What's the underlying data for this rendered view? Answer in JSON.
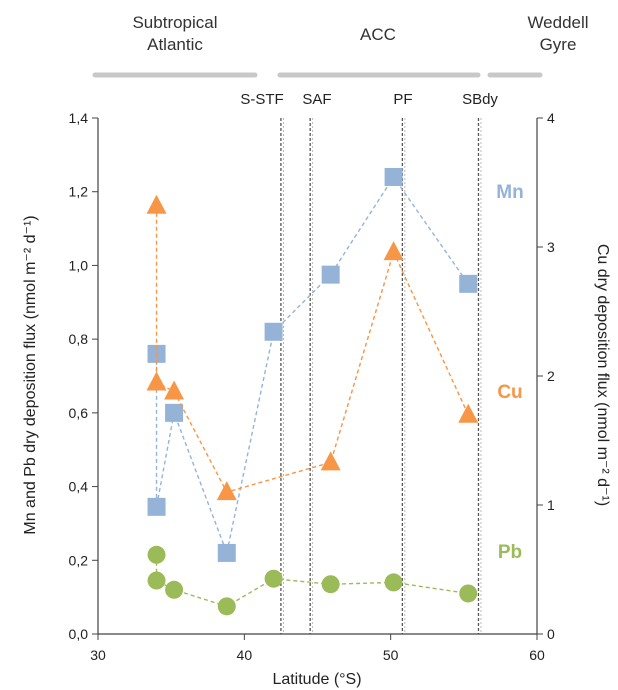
{
  "colors": {
    "mn": "#95b3d7",
    "cu": "#f79646",
    "pb": "#9bbb59",
    "axis": "#444444",
    "front_line": "#555555",
    "region_bar": "#c8c8c8"
  },
  "regions": [
    {
      "lines": [
        "Subtropical",
        "Atlantic"
      ],
      "lat_range": [
        30,
        41
      ]
    },
    {
      "lines": [
        "ACC"
      ],
      "lat_range": [
        42,
        56
      ]
    },
    {
      "lines": [
        "Weddell",
        "Gyre"
      ],
      "lat_range": [
        57,
        60
      ]
    }
  ],
  "chart_data": {
    "type": "scatter",
    "xlabel": "Latitude (°S)",
    "ylabel_left": "Mn and Pb dry deposition flux (nmol m⁻² d⁻¹)",
    "ylabel_right": "Cu dry deposition flux (nmol m⁻² d⁻¹)",
    "xlim": [
      30,
      60
    ],
    "ylim_left": [
      0,
      1.4
    ],
    "ylim_right": [
      0,
      4
    ],
    "x_ticks": [
      30,
      40,
      50,
      60
    ],
    "y_ticks_left": [
      "0,0",
      "0,2",
      "0,4",
      "0,6",
      "0,8",
      "1,0",
      "1,2",
      "1,4"
    ],
    "y_ticks_left_values": [
      0,
      0.2,
      0.4,
      0.6,
      0.8,
      1.0,
      1.2,
      1.4
    ],
    "y_ticks_right": [
      "0",
      "1",
      "2",
      "3",
      "4"
    ],
    "y_ticks_right_values": [
      0,
      1,
      2,
      3,
      4
    ],
    "fronts": [
      {
        "name": "S-STF",
        "lat": 42.5
      },
      {
        "name": "SAF",
        "lat": 44.5
      },
      {
        "name": "PF",
        "lat": 50.8
      },
      {
        "name": "SBdy",
        "lat": 56.0
      }
    ],
    "series": [
      {
        "name": "Mn",
        "axis": "left",
        "marker": "square",
        "points": [
          {
            "x": 34.0,
            "y": 0.76
          },
          {
            "x": 34.0,
            "y": 0.345
          },
          {
            "x": 35.2,
            "y": 0.6
          },
          {
            "x": 38.8,
            "y": 0.22
          },
          {
            "x": 42.0,
            "y": 0.82
          },
          {
            "x": 45.9,
            "y": 0.975
          },
          {
            "x": 50.2,
            "y": 1.24
          },
          {
            "x": 55.3,
            "y": 0.95
          }
        ]
      },
      {
        "name": "Cu",
        "axis": "right",
        "marker": "triangle",
        "points": [
          {
            "x": 34.0,
            "y": 3.32
          },
          {
            "x": 34.0,
            "y": 1.95
          },
          {
            "x": 35.2,
            "y": 1.88
          },
          {
            "x": 38.8,
            "y": 1.1
          },
          {
            "x": 45.9,
            "y": 1.33
          },
          {
            "x": 50.2,
            "y": 2.96
          },
          {
            "x": 55.3,
            "y": 1.7
          }
        ]
      },
      {
        "name": "Pb",
        "axis": "left",
        "marker": "circle",
        "points": [
          {
            "x": 34.0,
            "y": 0.215
          },
          {
            "x": 34.0,
            "y": 0.145
          },
          {
            "x": 35.2,
            "y": 0.12
          },
          {
            "x": 38.8,
            "y": 0.075
          },
          {
            "x": 42.0,
            "y": 0.15
          },
          {
            "x": 45.9,
            "y": 0.135
          },
          {
            "x": 50.2,
            "y": 0.14
          },
          {
            "x": 55.3,
            "y": 0.11
          }
        ]
      }
    ]
  }
}
